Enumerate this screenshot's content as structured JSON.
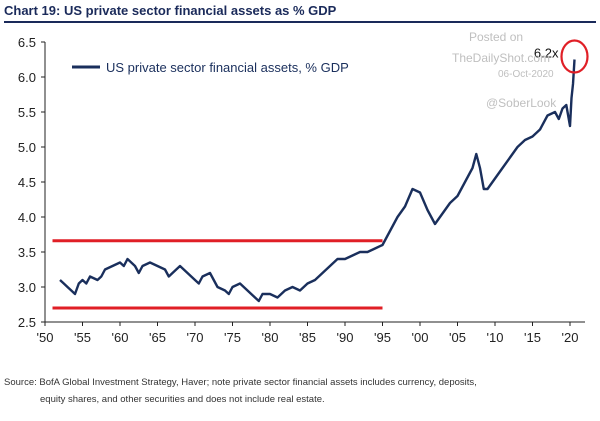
{
  "title": "Chart 19: US private sector financial assets as % GDP",
  "source_line1": "Source: BofA Global Investment Strategy, Haver; note private sector financial assets includes currency, deposits,",
  "source_line2": "equity shares, and other securities and does not include real estate.",
  "watermark": {
    "posted_on": "Posted on",
    "site": "TheDailyShot.com",
    "date": "06-Oct-2020",
    "handle": "@SoberLook"
  },
  "colors": {
    "series": "#1a2f5c",
    "band_lines": "#e01f26",
    "callout_circle": "#e01f26",
    "title": "#1a2a5a"
  },
  "chart_data": {
    "type": "line",
    "title": "Chart 19: US private sector financial assets as % GDP",
    "ylim": [
      2.5,
      6.5
    ],
    "xlim": [
      1950,
      2022
    ],
    "y_ticks": [
      "2.5",
      "3.0",
      "3.5",
      "4.0",
      "4.5",
      "5.0",
      "5.5",
      "6.0",
      "6.5"
    ],
    "x_ticks": [
      "'50",
      "'55",
      "'60",
      "'65",
      "'70",
      "'75",
      "'80",
      "'85",
      "'90",
      "'95",
      "'00",
      "'05",
      "'10",
      "'15",
      "'20"
    ],
    "legend": {
      "label": "US private sector financial assets, % GDP",
      "placement": "top-left"
    },
    "grid": false,
    "reference_lines": [
      {
        "y": 3.66,
        "x_start": 1951,
        "x_end": 1995,
        "color": "#e01f26"
      },
      {
        "y": 2.7,
        "x_start": 1951,
        "x_end": 1995,
        "color": "#e01f26"
      }
    ],
    "annotation": {
      "text": "6.2x",
      "x": 2020.6,
      "y": 6.25
    },
    "series": [
      {
        "name": "US private sector financial assets, % GDP",
        "x": [
          1952.0,
          1952.5,
          1953.0,
          1953.5,
          1954.0,
          1954.5,
          1955.0,
          1955.5,
          1956.0,
          1957.0,
          1957.5,
          1958.0,
          1959.0,
          1960.0,
          1960.5,
          1961.0,
          1962.0,
          1962.5,
          1963.0,
          1964.0,
          1965.0,
          1966.0,
          1966.5,
          1967.0,
          1968.0,
          1969.0,
          1970.0,
          1970.5,
          1971.0,
          1972.0,
          1973.0,
          1974.0,
          1974.5,
          1975.0,
          1976.0,
          1977.0,
          1978.0,
          1978.5,
          1979.0,
          1980.0,
          1981.0,
          1982.0,
          1983.0,
          1984.0,
          1985.0,
          1986.0,
          1987.0,
          1988.0,
          1989.0,
          1990.0,
          1991.0,
          1992.0,
          1993.0,
          1994.0,
          1995.0,
          1996.0,
          1997.0,
          1998.0,
          1999.0,
          2000.0,
          2001.0,
          2002.0,
          2003.0,
          2004.0,
          2005.0,
          2006.0,
          2007.0,
          2007.5,
          2008.0,
          2008.5,
          2009.0,
          2010.0,
          2011.0,
          2012.0,
          2013.0,
          2014.0,
          2015.0,
          2016.0,
          2017.0,
          2018.0,
          2018.5,
          2019.0,
          2019.5,
          2020.0,
          2020.2,
          2020.4,
          2020.6
        ],
        "values": [
          3.1,
          3.05,
          3.0,
          2.95,
          2.9,
          3.05,
          3.1,
          3.05,
          3.15,
          3.1,
          3.15,
          3.25,
          3.3,
          3.35,
          3.3,
          3.4,
          3.3,
          3.2,
          3.3,
          3.35,
          3.3,
          3.25,
          3.15,
          3.2,
          3.3,
          3.2,
          3.1,
          3.05,
          3.15,
          3.2,
          3.0,
          2.95,
          2.9,
          3.0,
          3.05,
          2.95,
          2.85,
          2.8,
          2.9,
          2.9,
          2.85,
          2.95,
          3.0,
          2.95,
          3.05,
          3.1,
          3.2,
          3.3,
          3.4,
          3.4,
          3.45,
          3.5,
          3.5,
          3.55,
          3.6,
          3.8,
          4.0,
          4.15,
          4.4,
          4.35,
          4.1,
          3.9,
          4.05,
          4.2,
          4.3,
          4.5,
          4.7,
          4.9,
          4.7,
          4.4,
          4.4,
          4.55,
          4.7,
          4.85,
          5.0,
          5.1,
          5.15,
          5.25,
          5.45,
          5.5,
          5.4,
          5.55,
          5.6,
          5.3,
          5.7,
          5.9,
          6.25
        ]
      }
    ]
  }
}
